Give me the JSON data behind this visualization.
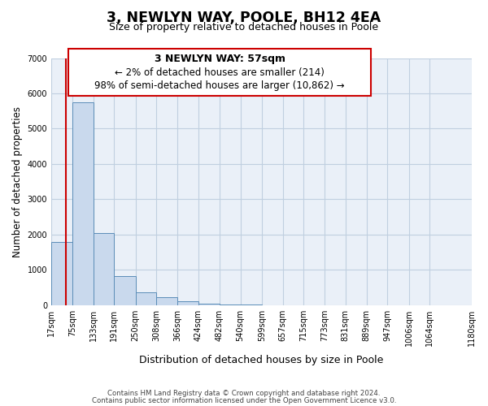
{
  "title": "3, NEWLYN WAY, POOLE, BH12 4EA",
  "subtitle": "Size of property relative to detached houses in Poole",
  "xlabel": "Distribution of detached houses by size in Poole",
  "ylabel": "Number of detached properties",
  "bar_values": [
    1780,
    5750,
    2050,
    830,
    370,
    230,
    110,
    50,
    20,
    10,
    5,
    0,
    0,
    0,
    0,
    0,
    0,
    0,
    0
  ],
  "bar_edges": [
    17,
    75,
    133,
    191,
    250,
    308,
    366,
    424,
    482,
    540,
    599,
    657,
    715,
    773,
    831,
    889,
    947,
    1006,
    1064,
    1180
  ],
  "tick_labels": [
    "17sqm",
    "75sqm",
    "133sqm",
    "191sqm",
    "250sqm",
    "308sqm",
    "366sqm",
    "424sqm",
    "482sqm",
    "540sqm",
    "599sqm",
    "657sqm",
    "715sqm",
    "773sqm",
    "831sqm",
    "889sqm",
    "947sqm",
    "1006sqm",
    "1064sqm",
    "1180sqm"
  ],
  "bar_color": "#c9d9ed",
  "bar_edge_color": "#5b8db8",
  "property_line_x": 57,
  "property_line_color": "#cc0000",
  "ylim": [
    0,
    7000
  ],
  "yticks": [
    0,
    1000,
    2000,
    3000,
    4000,
    5000,
    6000,
    7000
  ],
  "annotation_title": "3 NEWLYN WAY: 57sqm",
  "annotation_line1": "← 2% of detached houses are smaller (214)",
  "annotation_line2": "98% of semi-detached houses are larger (10,862) →",
  "annotation_box_color": "#ffffff",
  "annotation_box_edge": "#cc0000",
  "footer1": "Contains HM Land Registry data © Crown copyright and database right 2024.",
  "footer2": "Contains public sector information licensed under the Open Government Licence v3.0.",
  "grid_color": "#c0cfe0",
  "background_color": "#eaf0f8"
}
